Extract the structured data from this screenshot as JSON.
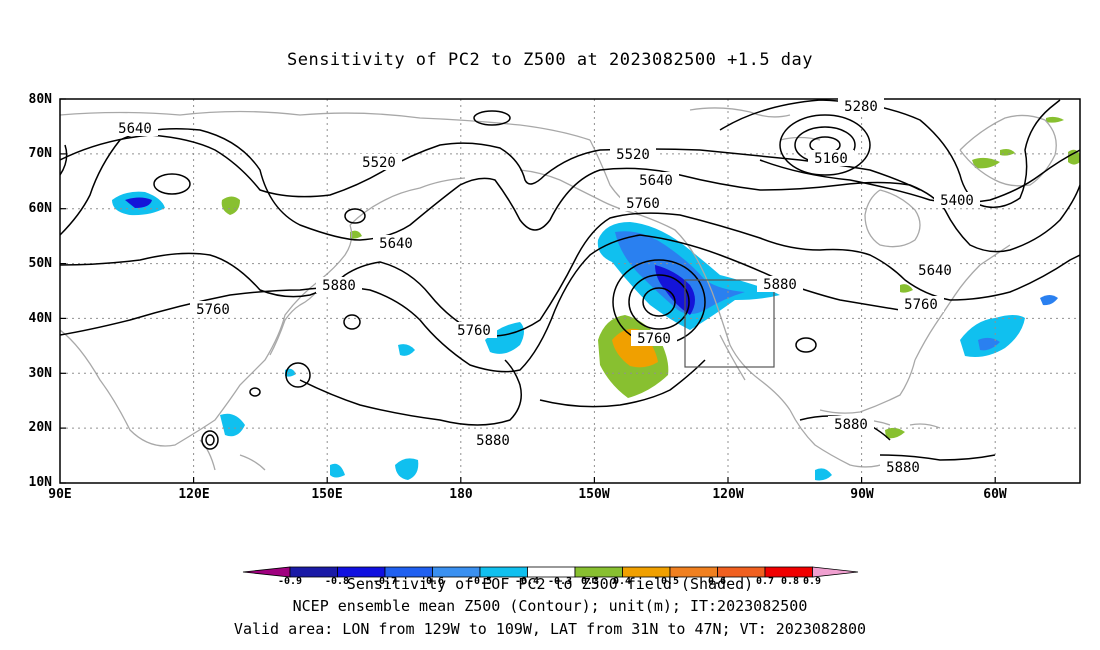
{
  "title": "Sensitivity of PC2 to Z500 at 2023082500 +1.5 day",
  "axes": {
    "lat_labels": [
      "80N",
      "70N",
      "60N",
      "50N",
      "40N",
      "30N",
      "20N",
      "10N"
    ],
    "lon_labels": [
      "90E",
      "120E",
      "150E",
      "180",
      "150W",
      "120W",
      "90W",
      "60W"
    ]
  },
  "contour_labels": [
    "5640",
    "5520",
    "5520",
    "5640",
    "5760",
    "5280",
    "5160",
    "5400",
    "5640",
    "5760",
    "5880",
    "5880",
    "5760",
    "5760",
    "5760",
    "5880",
    "5880",
    "5880",
    "5640"
  ],
  "colorbar": {
    "levels": [
      "-0.9",
      "-0.8",
      "-0.7",
      "-0.6",
      "-0.5",
      "-0.4",
      "-0.3",
      "0.3",
      "0.4",
      "0.5",
      "0.6",
      "0.7",
      "0.8",
      "0.9"
    ],
    "colors": [
      "#a0007f",
      "#1a1aa6",
      "#1010e0",
      "#2060f0",
      "#3a90f0",
      "#10c0ef",
      "#ffffff",
      "#88c030",
      "#f0a000",
      "#f08020",
      "#f06020",
      "#f03020",
      "#f00000",
      "#f0a0d0"
    ]
  },
  "captions": {
    "line1": "Sensitivity of EOF PC2 to Z500 field (Shaded)",
    "line2": "NCEP ensemble mean Z500 (Contour); unit(m); IT:2023082500",
    "line3": "Valid area: LON from 129W to 109W, LAT from 31N to 47N; VT: 2023082800"
  },
  "colors": {
    "contour": "#000000",
    "coast": "#a8a8a8",
    "grid": "#909090",
    "neg_light": "#10c0ef",
    "neg_mid": "#2a80f0",
    "neg_dark": "#1414d8",
    "pos_green": "#88c030",
    "pos_orange": "#f0a000"
  }
}
